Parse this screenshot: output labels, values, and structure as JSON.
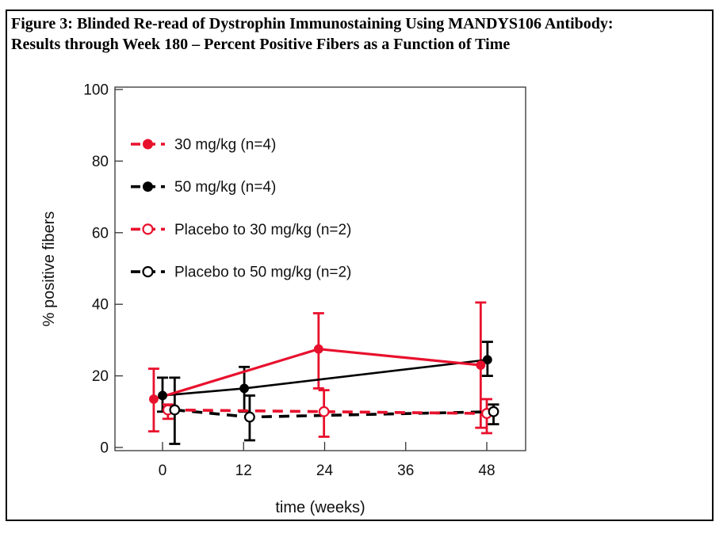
{
  "figure": {
    "title_line1": "Figure 3: Blinded Re-read of Dystrophin Immunostaining Using MANDYS106 Antibody:",
    "title_line2": "Results through Week 180 – Percent Positive Fibers as a Function of Time"
  },
  "colors": {
    "red_series": "#e8112d",
    "black_series": "#000000",
    "axis": "#333333",
    "text": "#111111"
  },
  "chart_data": {
    "type": "line",
    "title": "",
    "xlabel": "time (weeks)",
    "ylabel": "% positive fibers",
    "xlim": [
      -7,
      54
    ],
    "ylim": [
      0,
      100
    ],
    "xticks": [
      0,
      12,
      24,
      36,
      48
    ],
    "yticks": [
      0,
      20,
      40,
      60,
      80,
      100
    ],
    "grid": false,
    "legend_position": "upper-left-inside",
    "error_bars": true,
    "series": [
      {
        "name": "30 mg/kg (n=4)",
        "color": "#e8112d",
        "line_style": "solid",
        "marker": "filled-circle",
        "points": [
          {
            "x": -1.3,
            "y": 13.5,
            "err_low": 4.5,
            "err_high": 22
          },
          {
            "x": 23.1,
            "y": 27.5,
            "err_low": 16.5,
            "err_high": 37.5
          },
          {
            "x": 47.1,
            "y": 23,
            "err_low": 5.5,
            "err_high": 40.5
          }
        ]
      },
      {
        "name": "50 mg/kg (n=4)",
        "color": "#000000",
        "line_style": "solid",
        "marker": "filled-circle",
        "points": [
          {
            "x": 0,
            "y": 14.5,
            "err_low": 10,
            "err_high": 19.5
          },
          {
            "x": 12.1,
            "y": 16.5,
            "err_low": 10,
            "err_high": 22.5
          },
          {
            "x": 48.1,
            "y": 24.5,
            "err_low": 20,
            "err_high": 29.5
          }
        ]
      },
      {
        "name": "Placebo to 30 mg/kg (n=2)",
        "color": "#e8112d",
        "line_style": "dashed",
        "marker": "open-circle",
        "points": [
          {
            "x": 0.8,
            "y": 10.5,
            "err_low": 8,
            "err_high": 12
          },
          {
            "x": 23.9,
            "y": 10,
            "err_low": 3,
            "err_high": 16
          },
          {
            "x": 48,
            "y": 9.5,
            "err_low": 4,
            "err_high": 13.5
          }
        ]
      },
      {
        "name": "Placebo to 50 mg/kg (n=2)",
        "color": "#000000",
        "line_style": "dashed",
        "marker": "open-circle",
        "points": [
          {
            "x": 1.8,
            "y": 10.5,
            "err_low": 1,
            "err_high": 19.5
          },
          {
            "x": 12.9,
            "y": 8.5,
            "err_low": 2,
            "err_high": 14.5
          },
          {
            "x": 49,
            "y": 10,
            "err_low": 6.5,
            "err_high": 12
          }
        ]
      }
    ]
  }
}
